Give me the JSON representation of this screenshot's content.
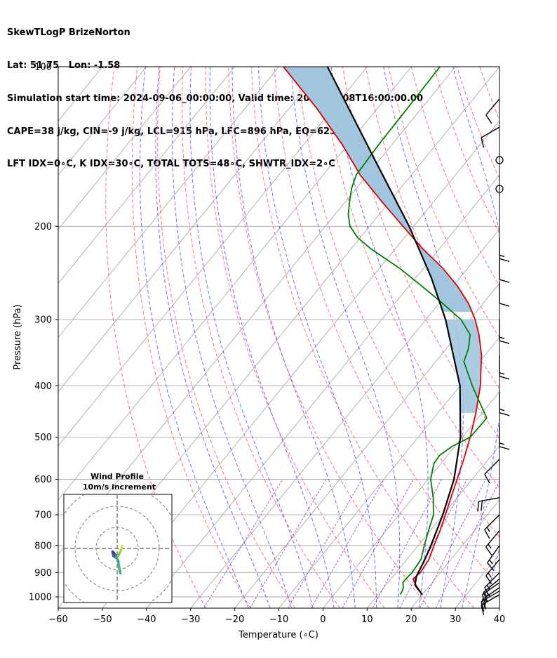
{
  "header": {
    "line1": "SkewTLogP BrizeNorton",
    "line2": "Lat: 51.75   Lon: -1.58",
    "line3": "Simulation start time: 2024-09-06_00:00:00, Valid time: 2024-09-08T16:00:00.00",
    "line4": "CAPE=38 j/kg, CIN=-9 j/kg, LCL=915 hPa, LFC=896 hPa, EQ=623 hPa",
    "line5": "LFT IDX=0∘C, K IDX=30∘C, TOTAL TOTS=48∘C, SHWTR_IDX=2∘C"
  },
  "chart_data": {
    "type": "skew-t",
    "xlabel": "Temperature (∘C)",
    "ylabel": "Pressure (hPa)",
    "xlim": [
      -60,
      40
    ],
    "ylim": [
      1050,
      100
    ],
    "x_ticks": [
      -60,
      -50,
      -40,
      -30,
      -20,
      -10,
      0,
      10,
      20,
      30,
      40
    ],
    "y_ticks": [
      1000,
      900,
      800,
      700,
      600,
      500,
      400,
      300,
      200,
      100
    ],
    "log_pressure": true,
    "grid": true,
    "colors": {
      "temperature": "#e00000",
      "dewpoint": "#008000",
      "parcel": "#000000",
      "cape_fill": "#a2c6df",
      "dry_adiabat": "#ff6666",
      "moist_adiabat": "#4a4aff",
      "mixing_ratio": "#9933cc",
      "isotherm": "#aaaaaa"
    },
    "temperature": {
      "p": [
        990,
        950,
        925,
        900,
        850,
        800,
        750,
        700,
        650,
        600,
        550,
        500,
        450,
        400,
        350,
        320,
        300,
        280,
        260,
        240,
        220,
        200,
        180,
        160,
        140,
        120,
        100
      ],
      "t": [
        20,
        16.8,
        15,
        15.5,
        15,
        13.6,
        12.2,
        10.5,
        8.6,
        6.6,
        4.4,
        1.8,
        -1.4,
        -5.4,
        -10.8,
        -15.2,
        -18.8,
        -23.2,
        -28.8,
        -35.6,
        -44,
        -52.4,
        -61.6,
        -71.6,
        -81.4,
        -93.6,
        -109
      ]
    },
    "dewpoint": {
      "p": [
        990,
        975,
        960,
        940,
        925,
        900,
        850,
        800,
        750,
        700,
        650,
        600,
        560,
        540,
        520,
        500,
        460,
        400,
        360,
        340,
        320,
        300,
        280,
        260,
        240,
        220,
        210,
        200,
        190,
        180,
        170,
        160,
        140,
        120,
        100
      ],
      "td": [
        15,
        14.8,
        14.4,
        13.4,
        13.4,
        13.6,
        13.2,
        11.4,
        9.6,
        7.8,
        4.6,
        0.6,
        -1.6,
        -1.8,
        -0.6,
        1.8,
        2,
        -7.2,
        -13.6,
        -15,
        -17.2,
        -22,
        -29,
        -36.8,
        -45.4,
        -55.8,
        -60.6,
        -64.4,
        -67,
        -69,
        -71,
        -72.5,
        -73,
        -73.2,
        -73.5
      ]
    },
    "parcel": {
      "p": [
        990,
        950,
        915,
        850,
        800,
        700,
        600,
        500,
        400,
        300,
        250,
        200,
        150,
        100
      ],
      "t": [
        20,
        16.6,
        15.3,
        14.1,
        12.9,
        9.9,
        5.9,
        -0.4,
        -10,
        -25.5,
        -36.5,
        -51,
        -71,
        -99
      ]
    },
    "cape_region": {
      "p_bottom": 290,
      "p_top": 100
    },
    "wind_barbs": [
      {
        "p": 990,
        "speed_kt": 15,
        "dir_deg": 240
      },
      {
        "p": 975,
        "speed_kt": 15,
        "dir_deg": 240
      },
      {
        "p": 960,
        "speed_kt": 15,
        "dir_deg": 235
      },
      {
        "p": 940,
        "speed_kt": 15,
        "dir_deg": 235
      },
      {
        "p": 925,
        "speed_kt": 15,
        "dir_deg": 230
      },
      {
        "p": 900,
        "speed_kt": 15,
        "dir_deg": 225
      },
      {
        "p": 850,
        "speed_kt": 15,
        "dir_deg": 220
      },
      {
        "p": 800,
        "speed_kt": 15,
        "dir_deg": 215
      },
      {
        "p": 750,
        "speed_kt": 15,
        "dir_deg": 220
      },
      {
        "p": 700,
        "speed_kt": 15,
        "dir_deg": 225
      },
      {
        "p": 650,
        "speed_kt": 20,
        "dir_deg": 260
      },
      {
        "p": 550,
        "speed_kt": 10,
        "dir_deg": 225
      },
      {
        "p": 475,
        "speed_kt": 15,
        "dir_deg": 180
      },
      {
        "p": 410,
        "speed_kt": 15,
        "dir_deg": 180
      },
      {
        "p": 350,
        "speed_kt": 15,
        "dir_deg": 180
      },
      {
        "p": 300,
        "speed_kt": 15,
        "dir_deg": 180
      },
      {
        "p": 255,
        "speed_kt": 10,
        "dir_deg": 180
      },
      {
        "p": 230,
        "speed_kt": 10,
        "dir_deg": 180
      },
      {
        "p": 210,
        "speed_kt": 15,
        "dir_deg": 180
      },
      {
        "p": 170,
        "speed_kt": 0,
        "dir_deg": 0
      },
      {
        "p": 150,
        "speed_kt": 0,
        "dir_deg": 0
      },
      {
        "p": 130,
        "speed_kt": 10,
        "dir_deg": 240
      },
      {
        "p": 115,
        "speed_kt": 10,
        "dir_deg": 220
      }
    ],
    "hodograph": {
      "title": "Wind Profile",
      "subtitle": "10m/s increment",
      "rings": [
        10,
        20,
        30
      ],
      "u": [
        1.5,
        1.4,
        1.2,
        1.0,
        0.8,
        0.5,
        -0.5,
        -1.6,
        -2.2,
        -1.8,
        -0.5,
        0.5,
        1.5,
        2.3,
        2.3
      ],
      "v": [
        -11.8,
        -11.0,
        -10.2,
        -9.5,
        -8.0,
        -6.0,
        -3.5,
        -2.0,
        -1.5,
        -3.5,
        -4.5,
        -3.5,
        -1.5,
        0.3,
        1.2
      ]
    }
  }
}
